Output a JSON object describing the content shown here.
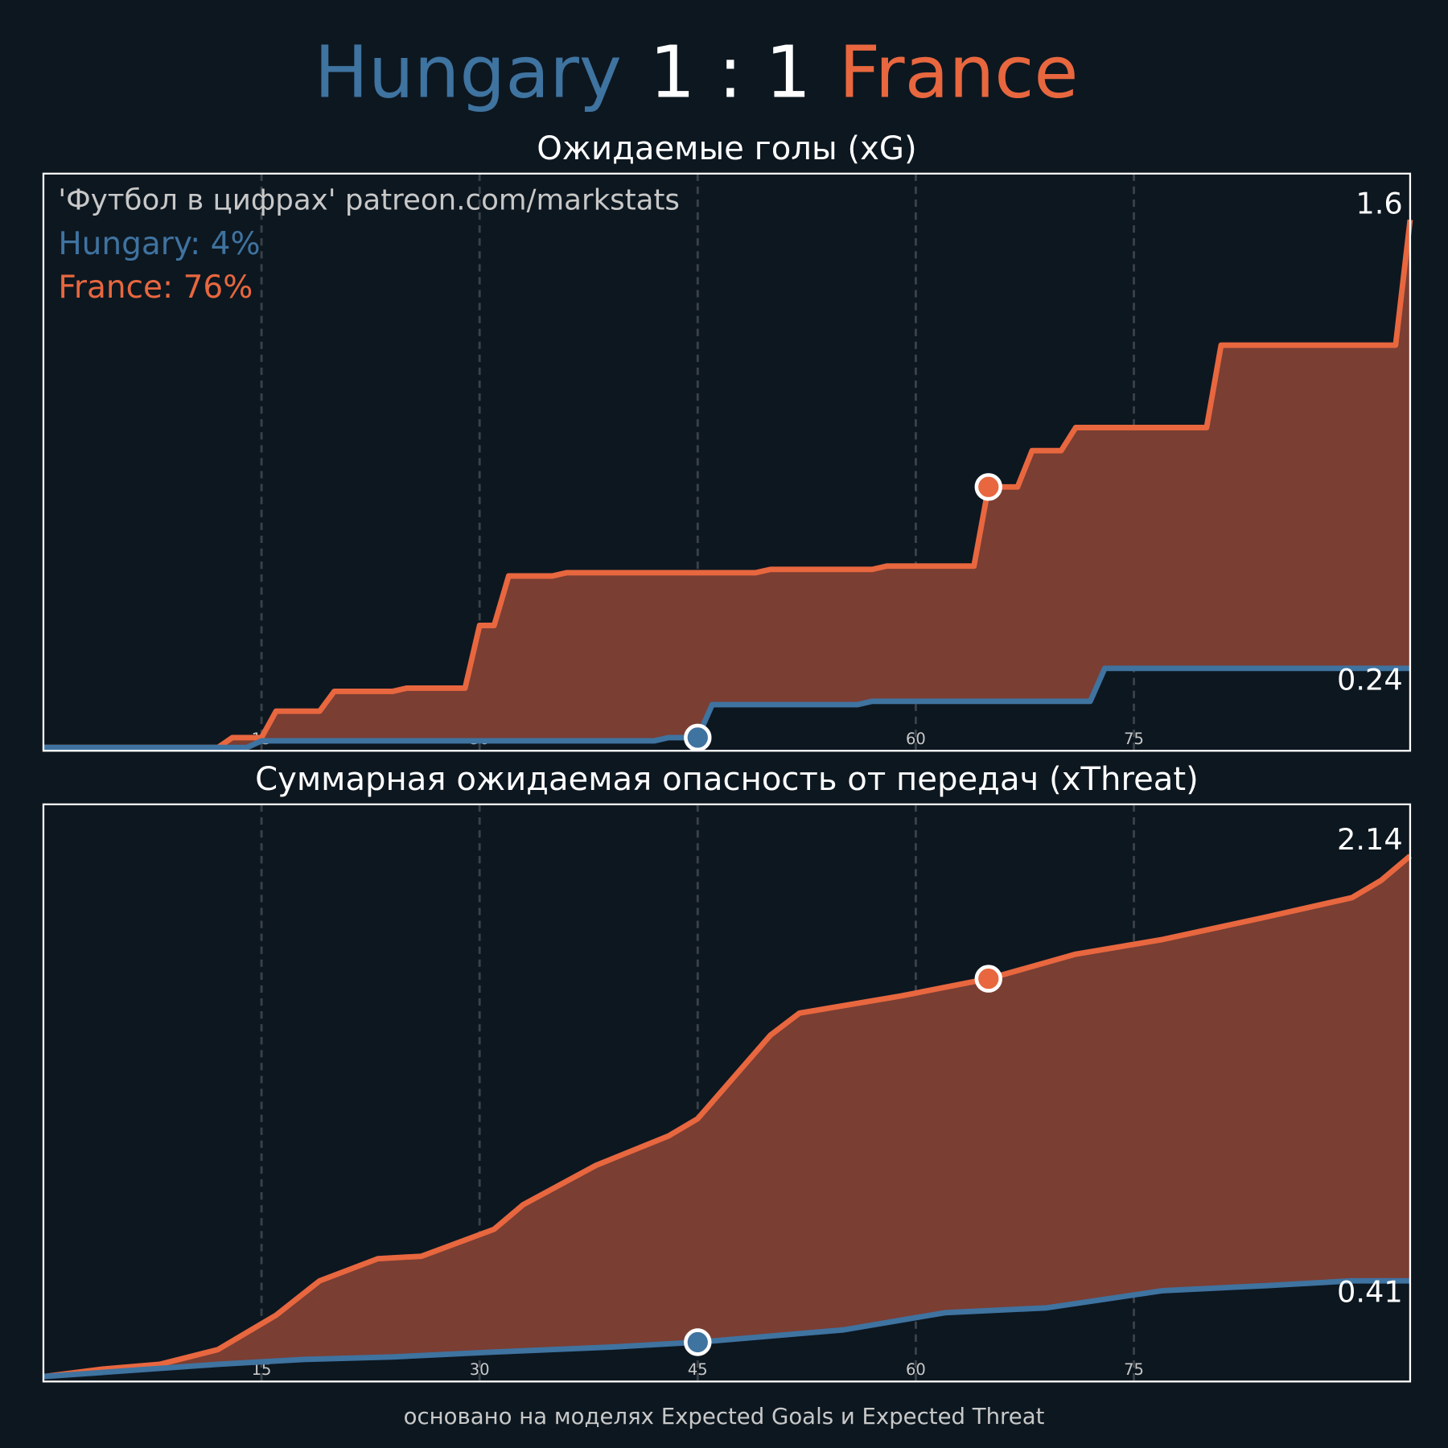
{
  "header": {
    "home": "Hungary",
    "score": "1 : 1",
    "away": "France"
  },
  "watermark": "'Футбол в цифрах' patreon.com/markstats",
  "legend": [
    "Hungary: 4%",
    "France: 76%"
  ],
  "footer": "основано на моделях Expected Goals и Expected Threat",
  "chart_data": [
    {
      "type": "line",
      "title": "Ожидаемые голы (xG)",
      "xlim": [
        0,
        94
      ],
      "ylim": [
        -0.01,
        1.74
      ],
      "xticks": [
        15,
        30,
        45,
        60,
        75
      ],
      "grid": true,
      "series": [
        {
          "color": "#e8673f",
          "x": [
            0,
            12,
            13,
            15,
            16,
            19,
            20,
            24,
            25,
            29,
            30,
            31,
            32,
            35,
            36,
            49,
            50,
            57,
            58,
            64,
            65,
            67,
            68,
            70,
            71,
            80,
            81,
            93,
            94
          ],
          "values": [
            0,
            0,
            0.03,
            0.03,
            0.11,
            0.11,
            0.17,
            0.17,
            0.18,
            0.18,
            0.37,
            0.37,
            0.52,
            0.52,
            0.53,
            0.53,
            0.54,
            0.54,
            0.55,
            0.55,
            0.79,
            0.79,
            0.9,
            0.9,
            0.97,
            0.97,
            1.22,
            1.22,
            1.6
          ],
          "goal_x": 65,
          "goal_y": 0.79
        },
        {
          "color": "#3f73a0",
          "x": [
            0,
            14,
            15,
            42,
            43,
            45,
            46,
            56,
            57,
            72,
            73,
            94
          ],
          "values": [
            0,
            0,
            0.02,
            0.02,
            0.03,
            0.03,
            0.13,
            0.13,
            0.14,
            0.14,
            0.24,
            0.24
          ],
          "goal_x": 45,
          "goal_y": 0.03
        }
      ]
    },
    {
      "type": "line",
      "title": "Суммарная ожидаемая опасность от передач (xThreat)",
      "xlim": [
        0,
        94
      ],
      "ylim": [
        0,
        2.35
      ],
      "xticks": [
        15,
        30,
        45,
        60,
        75
      ],
      "grid": true,
      "series": [
        {
          "color": "#e8673f",
          "x": [
            0,
            4,
            8,
            12,
            16,
            19,
            23,
            26,
            31,
            33,
            38,
            43,
            45,
            50,
            52,
            59,
            65,
            71,
            77,
            84,
            90,
            92,
            94
          ],
          "values": [
            0.02,
            0.05,
            0.07,
            0.13,
            0.27,
            0.41,
            0.5,
            0.51,
            0.62,
            0.72,
            0.88,
            1.0,
            1.07,
            1.41,
            1.5,
            1.57,
            1.64,
            1.74,
            1.8,
            1.89,
            1.97,
            2.04,
            2.14
          ],
          "goal_x": 65,
          "goal_y": 1.64
        },
        {
          "color": "#3f73a0",
          "x": [
            0,
            12,
            18,
            24,
            31,
            39,
            45,
            55,
            62,
            69,
            77,
            84,
            90,
            94
          ],
          "values": [
            0.02,
            0.07,
            0.09,
            0.1,
            0.12,
            0.14,
            0.16,
            0.21,
            0.28,
            0.3,
            0.37,
            0.39,
            0.41,
            0.41
          ],
          "goal_x": 45,
          "goal_y": 0.16
        }
      ]
    }
  ]
}
